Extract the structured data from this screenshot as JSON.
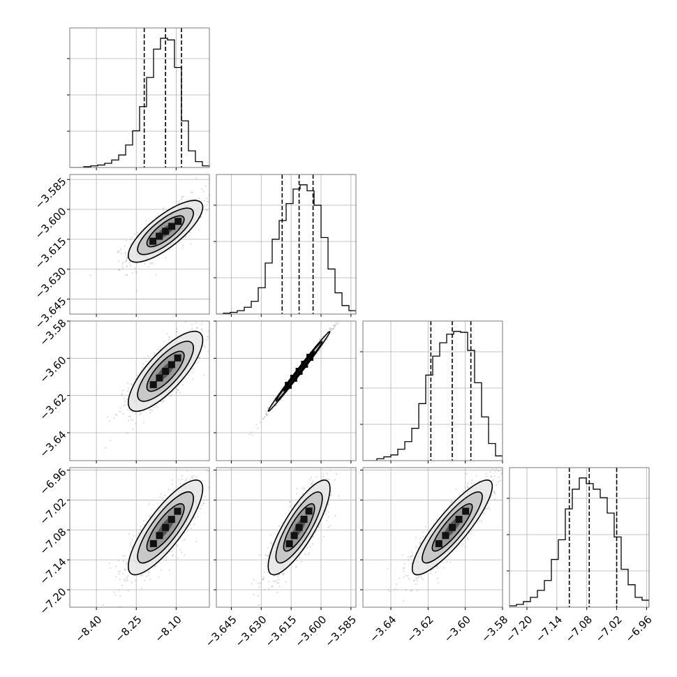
{
  "chart_data": {
    "type": "corner",
    "parameters": [
      "p0",
      "p1",
      "p2",
      "p3"
    ],
    "axis_limits": {
      "p0": [
        -8.5,
        -7.975
      ],
      "p1": [
        -3.6525,
        -3.5825
      ],
      "p2": [
        -3.655,
        -3.58
      ],
      "p3": [
        -7.235,
        -6.955
      ]
    },
    "ticks": {
      "p0": {
        "values": [
          -8.4,
          -8.25,
          -8.1
        ],
        "labels": [
          "−8.40",
          "−8.25",
          "−8.10"
        ]
      },
      "p1": {
        "values": [
          -3.645,
          -3.63,
          -3.615,
          -3.6,
          -3.585
        ],
        "labels": [
          "−3.645",
          "−3.630",
          "−3.615",
          "−3.600",
          "−3.585"
        ]
      },
      "p2": {
        "values": [
          -3.64,
          -3.62,
          -3.6,
          -3.58
        ],
        "labels": [
          "−3.64",
          "−3.62",
          "−3.60",
          "−3.58"
        ]
      },
      "p3": {
        "values": [
          -7.2,
          -7.14,
          -7.08,
          -7.02,
          -6.96
        ],
        "labels": [
          "−7.20",
          "−7.14",
          "−7.08",
          "−7.02",
          "−6.96"
        ]
      }
    },
    "quantiles": {
      "p0": [
        -8.22,
        -8.14,
        -8.08
      ],
      "p1": [
        -3.6195,
        -3.611,
        -3.604
      ],
      "p2": [
        -3.6185,
        -3.607,
        -3.597
      ],
      "p3": [
        -7.115,
        -7.075,
        -7.02
      ]
    },
    "histograms": {
      "p0": [
        0,
        0,
        1,
        2,
        3,
        5,
        9,
        15,
        27,
        44,
        73,
        108,
        142,
        155,
        153,
        120,
        56,
        20,
        7,
        2
      ],
      "p1": [
        0,
        1,
        2,
        4,
        8,
        15,
        31,
        60,
        88,
        110,
        130,
        147,
        152,
        145,
        128,
        90,
        53,
        25,
        10,
        4
      ],
      "p2": [
        0,
        0,
        2,
        4,
        6,
        12,
        20,
        34,
        60,
        90,
        110,
        124,
        133,
        136,
        135,
        116,
        82,
        46,
        18,
        5
      ],
      "p3": [
        1,
        2,
        4,
        7,
        12,
        19,
        34,
        48,
        70,
        84,
        92,
        88,
        84,
        78,
        67,
        50,
        27,
        16,
        7,
        5
      ]
    },
    "correlations": [
      {
        "row": "p1",
        "col": "p0",
        "r": 0.78
      },
      {
        "row": "p2",
        "col": "p0",
        "r": 0.78
      },
      {
        "row": "p2",
        "col": "p1",
        "r": 0.995
      },
      {
        "row": "p3",
        "col": "p0",
        "r": 0.82
      },
      {
        "row": "p3",
        "col": "p1",
        "r": 0.82
      },
      {
        "row": "p3",
        "col": "p2",
        "r": 0.87
      }
    ],
    "contour_levels_sigma": [
      0.5,
      1.0,
      1.5,
      2.0
    ],
    "grid": true,
    "colors": {
      "samples": "#9a9a9a",
      "lines": "#000000",
      "grid": "#b0b0b0",
      "frame": "#7a7a7a"
    },
    "xlabel": "",
    "ylabel": ""
  }
}
